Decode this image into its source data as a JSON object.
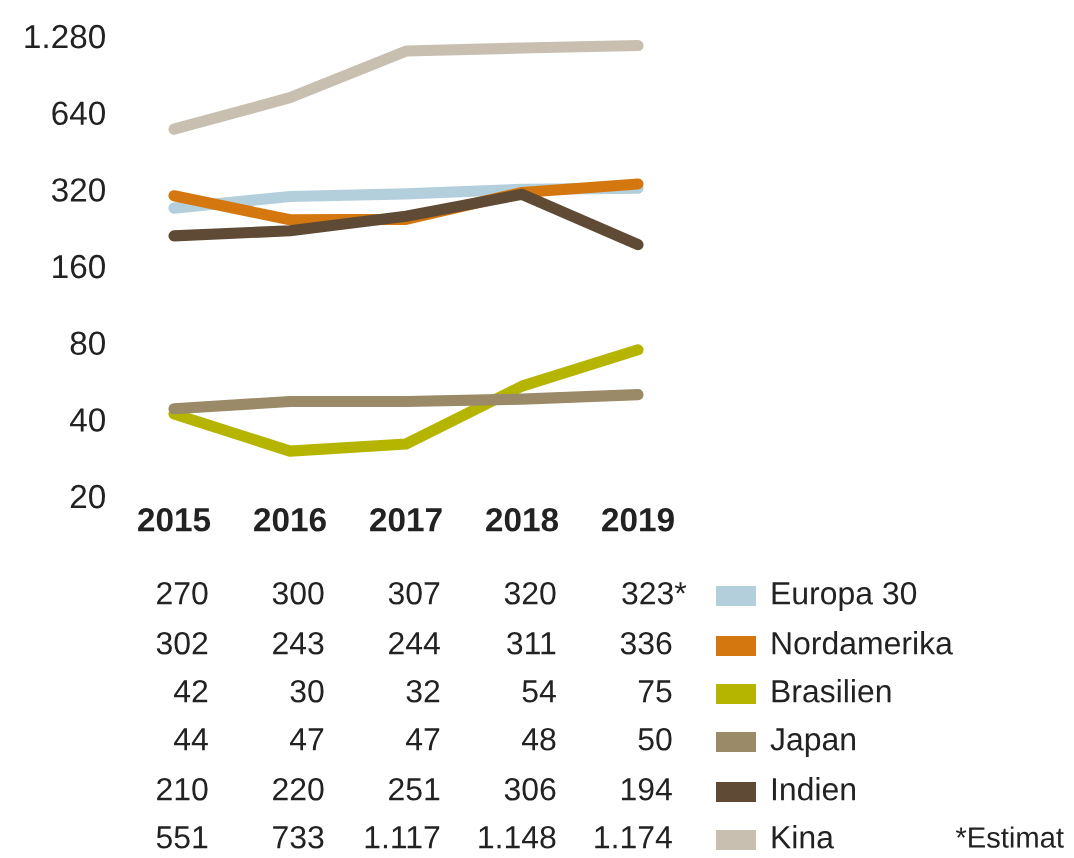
{
  "chart_data": {
    "type": "line",
    "categories": [
      "2015",
      "2016",
      "2017",
      "2018",
      "2019"
    ],
    "log": "y",
    "ylim": [
      20,
      1280
    ],
    "yticks": [
      20,
      40,
      80,
      160,
      320,
      640,
      {
        "value": 1280,
        "label": "1.280"
      }
    ],
    "grid": false,
    "legend": "bottom",
    "marker": "none",
    "line_style": "solid",
    "series": [
      {
        "name": "Europa 30",
        "color": "#b4cfdc",
        "values": [
          270,
          300,
          307,
          320,
          323
        ],
        "value_labels": [
          "270",
          "300",
          "307",
          "320",
          "323*"
        ]
      },
      {
        "name": "Nordamerika",
        "color": "#d4770f",
        "values": [
          302,
          243,
          244,
          311,
          336
        ],
        "value_labels": [
          "302",
          "243",
          "244",
          "311",
          "336"
        ]
      },
      {
        "name": "Brasilien",
        "color": "#b5b500",
        "values": [
          42,
          30,
          32,
          54,
          75
        ],
        "value_labels": [
          "42",
          "30",
          "32",
          "54",
          "75"
        ]
      },
      {
        "name": "Japan",
        "color": "#9a8a68",
        "values": [
          44,
          47,
          47,
          48,
          50
        ],
        "value_labels": [
          "44",
          "47",
          "47",
          "48",
          "50"
        ]
      },
      {
        "name": "Indien",
        "color": "#5e4a35",
        "values": [
          210,
          220,
          251,
          306,
          194
        ],
        "value_labels": [
          "210",
          "220",
          "251",
          "306",
          "194"
        ]
      },
      {
        "name": "Kina",
        "color": "#c8bfb1",
        "values": [
          551,
          733,
          1117,
          1148,
          1174
        ],
        "value_labels": [
          "551",
          "733",
          "1.117",
          "1.148",
          "1.174"
        ]
      }
    ],
    "annotations": [
      "*Estimat"
    ]
  }
}
